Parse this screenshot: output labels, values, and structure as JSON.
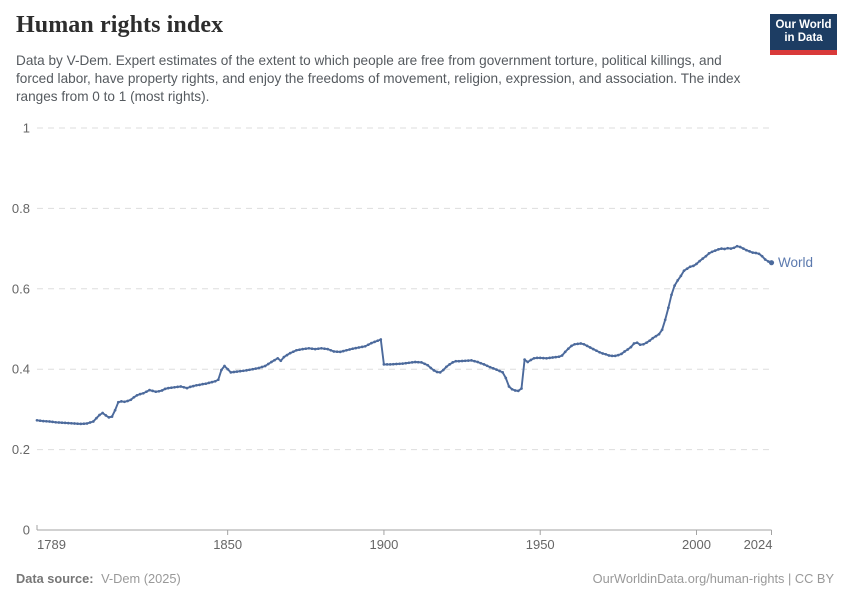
{
  "header": {
    "title": "Human rights index",
    "subtitle": "Data by V-Dem. Expert estimates of the extent to which people are free from government torture, political killings, and forced labor, have property rights, and enjoy the freedoms of movement, religion, expression, and association. The index ranges from 0 to 1 (most rights).",
    "logo": {
      "line1": "Our World",
      "line2": "in Data"
    }
  },
  "footer": {
    "source_label": "Data source:",
    "source_value": "V-Dem (2025)",
    "attribution": "OurWorldinData.org/human-rights | CC BY"
  },
  "colors": {
    "line": "#4c6a9c",
    "series_label": "#5b79ae",
    "grid": "#dddddd",
    "axis": "#a3a3a3",
    "tick_text": "#666666",
    "title_text": "#2d2d2d",
    "subtitle_text": "#555a5f",
    "logo_bg": "#1d3d63",
    "logo_accent": "#d93a3a"
  },
  "chart_data": {
    "type": "line",
    "title": "Human rights index",
    "xlabel": "",
    "ylabel": "",
    "xlim": [
      1789,
      2024
    ],
    "ylim": [
      0,
      1
    ],
    "x_ticks": [
      1789,
      1850,
      1900,
      1950,
      2000,
      2024
    ],
    "y_ticks": [
      0,
      0.2,
      0.4,
      0.6,
      0.8,
      1
    ],
    "grid": "horizontal-dashed",
    "legend_position": "end-of-line-label",
    "series": [
      {
        "name": "World",
        "color": "#4c6a9c",
        "label_color": "#5b79ae",
        "points": [
          [
            1789,
            0.273
          ],
          [
            1791,
            0.271
          ],
          [
            1793,
            0.27
          ],
          [
            1795,
            0.268
          ],
          [
            1797,
            0.267
          ],
          [
            1799,
            0.266
          ],
          [
            1801,
            0.265
          ],
          [
            1803,
            0.264
          ],
          [
            1805,
            0.265
          ],
          [
            1807,
            0.27
          ],
          [
            1808,
            0.278
          ],
          [
            1809,
            0.286
          ],
          [
            1810,
            0.291
          ],
          [
            1811,
            0.285
          ],
          [
            1812,
            0.28
          ],
          [
            1813,
            0.282
          ],
          [
            1814,
            0.298
          ],
          [
            1815,
            0.318
          ],
          [
            1816,
            0.32
          ],
          [
            1817,
            0.319
          ],
          [
            1818,
            0.321
          ],
          [
            1819,
            0.324
          ],
          [
            1820,
            0.33
          ],
          [
            1821,
            0.335
          ],
          [
            1822,
            0.338
          ],
          [
            1823,
            0.34
          ],
          [
            1824,
            0.344
          ],
          [
            1825,
            0.348
          ],
          [
            1826,
            0.346
          ],
          [
            1827,
            0.344
          ],
          [
            1828,
            0.345
          ],
          [
            1829,
            0.347
          ],
          [
            1830,
            0.351
          ],
          [
            1831,
            0.353
          ],
          [
            1832,
            0.354
          ],
          [
            1833,
            0.355
          ],
          [
            1834,
            0.356
          ],
          [
            1835,
            0.357
          ],
          [
            1836,
            0.355
          ],
          [
            1837,
            0.353
          ],
          [
            1838,
            0.356
          ],
          [
            1839,
            0.358
          ],
          [
            1840,
            0.36
          ],
          [
            1841,
            0.361
          ],
          [
            1842,
            0.363
          ],
          [
            1843,
            0.364
          ],
          [
            1844,
            0.366
          ],
          [
            1845,
            0.368
          ],
          [
            1846,
            0.37
          ],
          [
            1847,
            0.374
          ],
          [
            1848,
            0.398
          ],
          [
            1849,
            0.408
          ],
          [
            1850,
            0.4
          ],
          [
            1851,
            0.392
          ],
          [
            1852,
            0.393
          ],
          [
            1854,
            0.395
          ],
          [
            1856,
            0.397
          ],
          [
            1858,
            0.4
          ],
          [
            1860,
            0.403
          ],
          [
            1862,
            0.408
          ],
          [
            1864,
            0.418
          ],
          [
            1866,
            0.427
          ],
          [
            1867,
            0.421
          ],
          [
            1868,
            0.43
          ],
          [
            1870,
            0.44
          ],
          [
            1872,
            0.447
          ],
          [
            1874,
            0.45
          ],
          [
            1876,
            0.452
          ],
          [
            1878,
            0.45
          ],
          [
            1880,
            0.452
          ],
          [
            1882,
            0.45
          ],
          [
            1884,
            0.444
          ],
          [
            1886,
            0.443
          ],
          [
            1888,
            0.447
          ],
          [
            1890,
            0.451
          ],
          [
            1892,
            0.454
          ],
          [
            1894,
            0.457
          ],
          [
            1896,
            0.465
          ],
          [
            1898,
            0.471
          ],
          [
            1899,
            0.474
          ],
          [
            1900,
            0.412
          ],
          [
            1902,
            0.412
          ],
          [
            1904,
            0.413
          ],
          [
            1906,
            0.414
          ],
          [
            1908,
            0.416
          ],
          [
            1910,
            0.418
          ],
          [
            1912,
            0.417
          ],
          [
            1914,
            0.41
          ],
          [
            1915,
            0.403
          ],
          [
            1916,
            0.397
          ],
          [
            1917,
            0.393
          ],
          [
            1918,
            0.392
          ],
          [
            1919,
            0.398
          ],
          [
            1920,
            0.406
          ],
          [
            1921,
            0.412
          ],
          [
            1922,
            0.417
          ],
          [
            1923,
            0.42
          ],
          [
            1924,
            0.42
          ],
          [
            1926,
            0.421
          ],
          [
            1928,
            0.422
          ],
          [
            1930,
            0.418
          ],
          [
            1932,
            0.412
          ],
          [
            1934,
            0.405
          ],
          [
            1936,
            0.399
          ],
          [
            1938,
            0.392
          ],
          [
            1939,
            0.378
          ],
          [
            1940,
            0.357
          ],
          [
            1941,
            0.35
          ],
          [
            1942,
            0.347
          ],
          [
            1943,
            0.346
          ],
          [
            1944,
            0.352
          ],
          [
            1945,
            0.424
          ],
          [
            1946,
            0.418
          ],
          [
            1947,
            0.423
          ],
          [
            1948,
            0.427
          ],
          [
            1949,
            0.428
          ],
          [
            1950,
            0.428
          ],
          [
            1952,
            0.427
          ],
          [
            1954,
            0.429
          ],
          [
            1956,
            0.431
          ],
          [
            1957,
            0.434
          ],
          [
            1958,
            0.443
          ],
          [
            1959,
            0.451
          ],
          [
            1960,
            0.458
          ],
          [
            1961,
            0.462
          ],
          [
            1962,
            0.463
          ],
          [
            1963,
            0.464
          ],
          [
            1964,
            0.462
          ],
          [
            1965,
            0.458
          ],
          [
            1966,
            0.454
          ],
          [
            1967,
            0.45
          ],
          [
            1968,
            0.446
          ],
          [
            1969,
            0.442
          ],
          [
            1970,
            0.439
          ],
          [
            1971,
            0.437
          ],
          [
            1972,
            0.434
          ],
          [
            1973,
            0.433
          ],
          [
            1974,
            0.433
          ],
          [
            1975,
            0.435
          ],
          [
            1976,
            0.438
          ],
          [
            1977,
            0.444
          ],
          [
            1978,
            0.449
          ],
          [
            1979,
            0.455
          ],
          [
            1980,
            0.464
          ],
          [
            1981,
            0.466
          ],
          [
            1982,
            0.461
          ],
          [
            1983,
            0.462
          ],
          [
            1984,
            0.466
          ],
          [
            1985,
            0.471
          ],
          [
            1986,
            0.477
          ],
          [
            1987,
            0.482
          ],
          [
            1988,
            0.487
          ],
          [
            1989,
            0.498
          ],
          [
            1990,
            0.523
          ],
          [
            1991,
            0.553
          ],
          [
            1992,
            0.585
          ],
          [
            1993,
            0.608
          ],
          [
            1994,
            0.621
          ],
          [
            1995,
            0.632
          ],
          [
            1996,
            0.645
          ],
          [
            1997,
            0.65
          ],
          [
            1998,
            0.655
          ],
          [
            1999,
            0.657
          ],
          [
            2000,
            0.662
          ],
          [
            2001,
            0.669
          ],
          [
            2002,
            0.675
          ],
          [
            2003,
            0.681
          ],
          [
            2004,
            0.688
          ],
          [
            2005,
            0.692
          ],
          [
            2006,
            0.695
          ],
          [
            2007,
            0.698
          ],
          [
            2008,
            0.7
          ],
          [
            2009,
            0.699
          ],
          [
            2010,
            0.701
          ],
          [
            2011,
            0.7
          ],
          [
            2012,
            0.702
          ],
          [
            2013,
            0.706
          ],
          [
            2014,
            0.704
          ],
          [
            2015,
            0.7
          ],
          [
            2016,
            0.696
          ],
          [
            2017,
            0.693
          ],
          [
            2018,
            0.69
          ],
          [
            2019,
            0.689
          ],
          [
            2020,
            0.687
          ],
          [
            2021,
            0.681
          ],
          [
            2022,
            0.673
          ],
          [
            2023,
            0.668
          ],
          [
            2024,
            0.665
          ]
        ]
      }
    ]
  }
}
